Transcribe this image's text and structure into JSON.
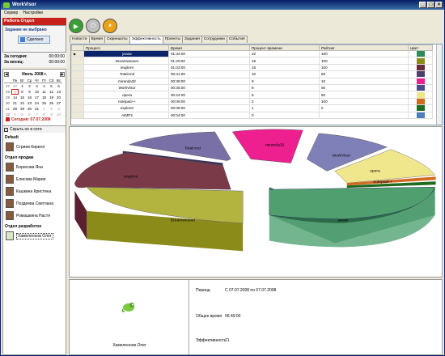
{
  "window": {
    "title": "WorkVisor"
  },
  "menu": [
    "Сервер",
    "Настройки"
  ],
  "left": {
    "panel_title": "Работа Отдел",
    "task_title": "Задание не выбрано",
    "done_label": "Сделано",
    "stats": [
      {
        "label": "За сегодня:",
        "value": "00:00:00"
      },
      {
        "label": "За месяц:",
        "value": "00:00:00"
      }
    ],
    "calendar": {
      "month": "Июль 2008 г.",
      "weekday_headers": [
        "",
        "Пн",
        "Вт",
        "Ср",
        "Чт",
        "Пт",
        "Сб",
        "Вс"
      ],
      "weeks": [
        [
          "27",
          "30",
          "1",
          "2",
          "3",
          "4",
          "5",
          "6"
        ],
        [
          "28",
          "7",
          "8",
          "9",
          "10",
          "11",
          "12",
          "13"
        ],
        [
          "29",
          "14",
          "15",
          "16",
          "17",
          "18",
          "19",
          "20"
        ],
        [
          "30",
          "21",
          "22",
          "23",
          "24",
          "25",
          "26",
          "27"
        ],
        [
          "31",
          "28",
          "29",
          "30",
          "31",
          "1",
          "2",
          "3"
        ],
        [
          "32",
          "4",
          "5",
          "6",
          "7",
          "8",
          "9",
          "10"
        ]
      ],
      "today_label": "Сегодня: 07.07.2008"
    },
    "hide_offline": "Скрыть не в сети",
    "groups": [
      {
        "name": "Default",
        "people": [
          "Стриев Кирилл"
        ]
      },
      {
        "name": "Отдел продаж",
        "people": [
          "Борисова Яна",
          "Елисова Мария",
          "Кашкина Кристина",
          "Поздеева Светлана",
          "Ромашкина Настя"
        ]
      },
      {
        "name": "Отдел разработок",
        "people": [
          "Хамелеонов Олег"
        ]
      }
    ]
  },
  "tabs": [
    "Новости",
    "Время",
    "Скриншоты",
    "Эффективность",
    "Проекты",
    "Задания",
    "Сотрудники",
    "События"
  ],
  "active_tab": "Эффективность",
  "table": {
    "columns": [
      "Процесс",
      "Время",
      "Процент времени",
      "Рейтинг",
      "Цвет"
    ],
    "rows": [
      {
        "process": "javaw",
        "time": "01:34:00",
        "percent": "22",
        "rating": "100",
        "color": "#2e8b57"
      },
      {
        "process": "Dreamweaver",
        "time": "01:20:00",
        "percent": "19",
        "rating": "100",
        "color": "#8b8b1a"
      },
      {
        "process": "iexplore",
        "time": "01:03:00",
        "percent": "15",
        "rating": "100",
        "color": "#6b2a3a"
      },
      {
        "process": "Totalcmd",
        "time": "00:41:00",
        "percent": "10",
        "rating": "60",
        "color": "#4a3f6b"
      },
      {
        "process": "miranda32",
        "time": "00:38:00",
        "percent": "9",
        "rating": "10",
        "color": "#ee1f8f"
      },
      {
        "process": "WorkVisor",
        "time": "00:35:00",
        "percent": "8",
        "rating": "50",
        "color": "#4b4b8a"
      },
      {
        "process": "opera",
        "time": "00:24:00",
        "percent": "5",
        "rating": "50",
        "color": "#f0e68c"
      },
      {
        "process": "notepad++",
        "time": "00:09:00",
        "percent": "2",
        "rating": "100",
        "color": "#d2691e"
      },
      {
        "process": "explorer",
        "time": "00:05:00",
        "percent": "1",
        "rating": "0",
        "color": "#1f6b1f"
      },
      {
        "process": "AIMP2",
        "time": "00:04:00",
        "percent": "0",
        "rating": "",
        "color": "#4a7fbf"
      }
    ]
  },
  "pie_labels": [
    "javaw",
    "Dreamweaver",
    "iexplore",
    "Totalcmd",
    "miranda32",
    "WorkVisor",
    "opera",
    "notepad++"
  ],
  "bottom": {
    "user_name": "Хамелеонов Олег",
    "period_label": "Период",
    "period_value": "С 07.07.2008 по 07.07.2008",
    "total_label": "Общее время",
    "total_value": "06:49:00",
    "eff_label": "Эффективность",
    "eff_value": "71"
  }
}
